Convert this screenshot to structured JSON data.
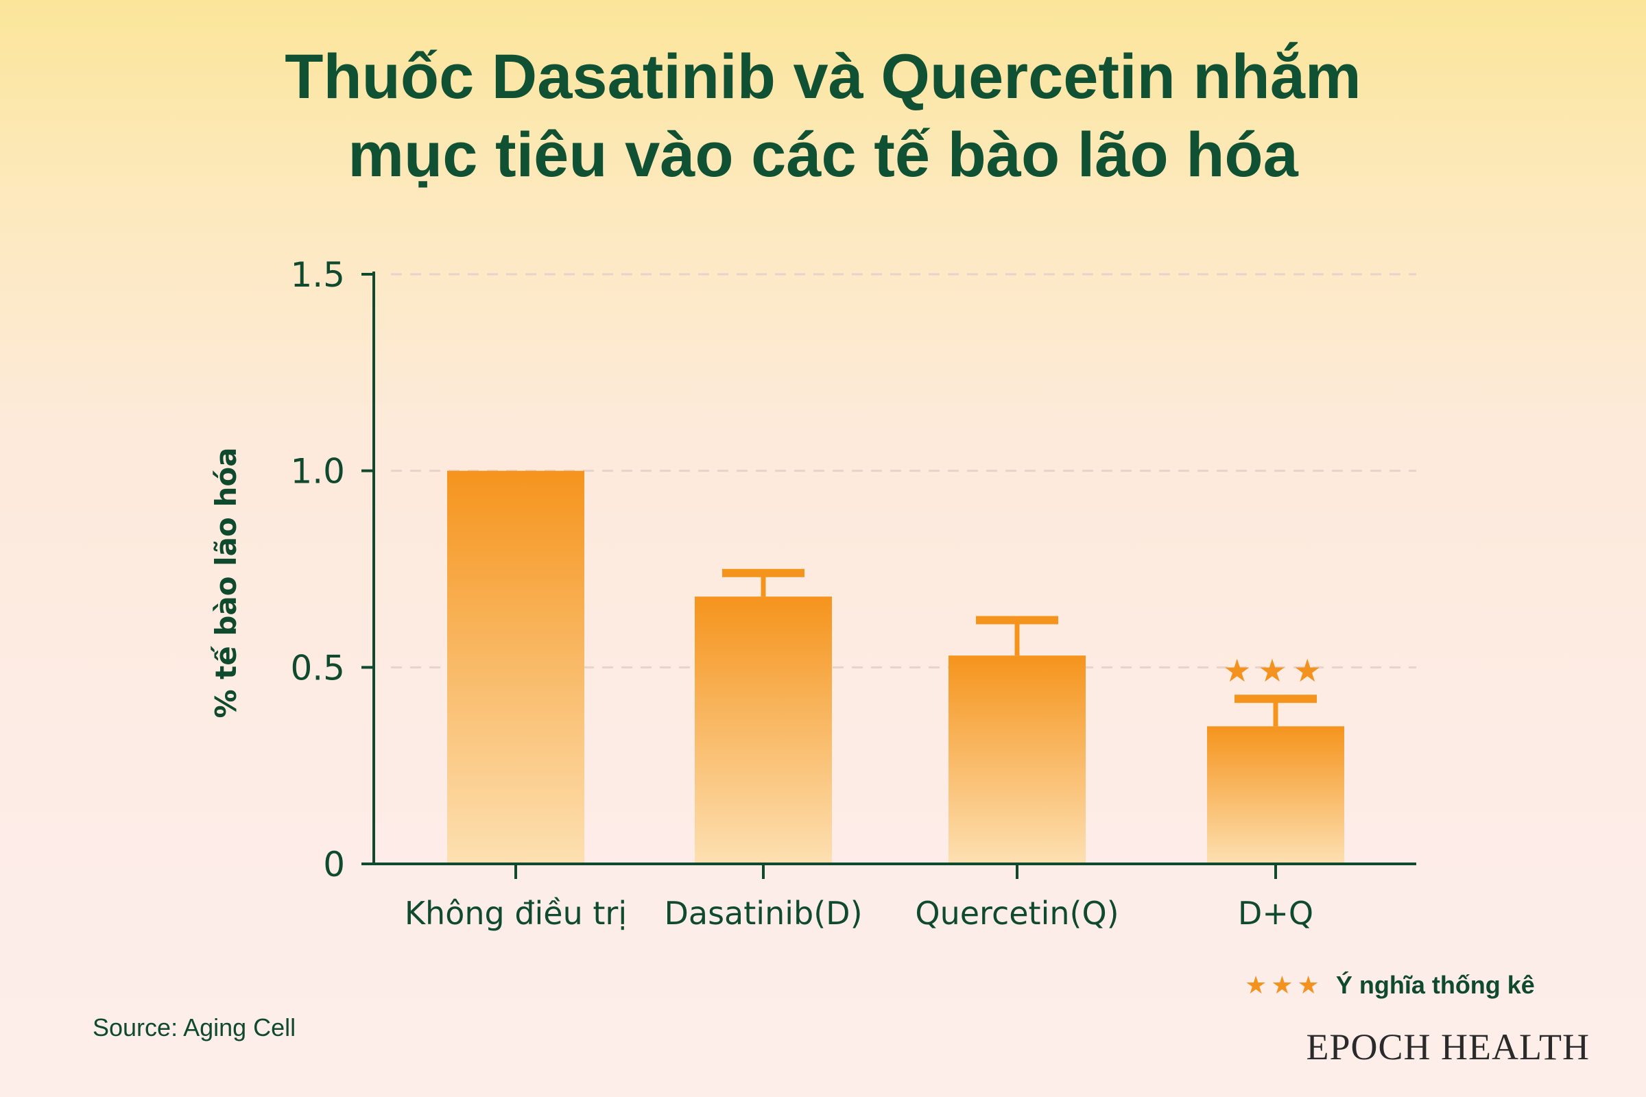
{
  "chart_data": {
    "type": "bar",
    "title": [
      "Thuốc Dasatinib và Quercetin nhắm",
      "mục tiêu vào các tế bào lão hóa"
    ],
    "ylabel": "% tế bào lão hóa",
    "xlabel": "",
    "ylim": [
      0,
      1.5
    ],
    "yticks": [
      0,
      0.5,
      1.0,
      1.5
    ],
    "ytick_labels": [
      "0",
      "0.5",
      "1.0",
      "1.5"
    ],
    "grid": "horizontal dashed",
    "categories": [
      "Không điều trị",
      "Dasatinib(D)",
      "Quercetin(Q)",
      "D+Q"
    ],
    "values": [
      1.0,
      0.68,
      0.53,
      0.35
    ],
    "error_upper": [
      null,
      0.74,
      0.62,
      0.42
    ],
    "significance": [
      "",
      "",
      "",
      "★★★"
    ],
    "bar_color": "#f5941d",
    "text_color": "#0f4a2e"
  },
  "legend": {
    "symbol": "★★★",
    "label": "Ý nghĩa thống kê"
  },
  "source": "Source: Aging Cell",
  "brand": "EPOCH HEALTH"
}
